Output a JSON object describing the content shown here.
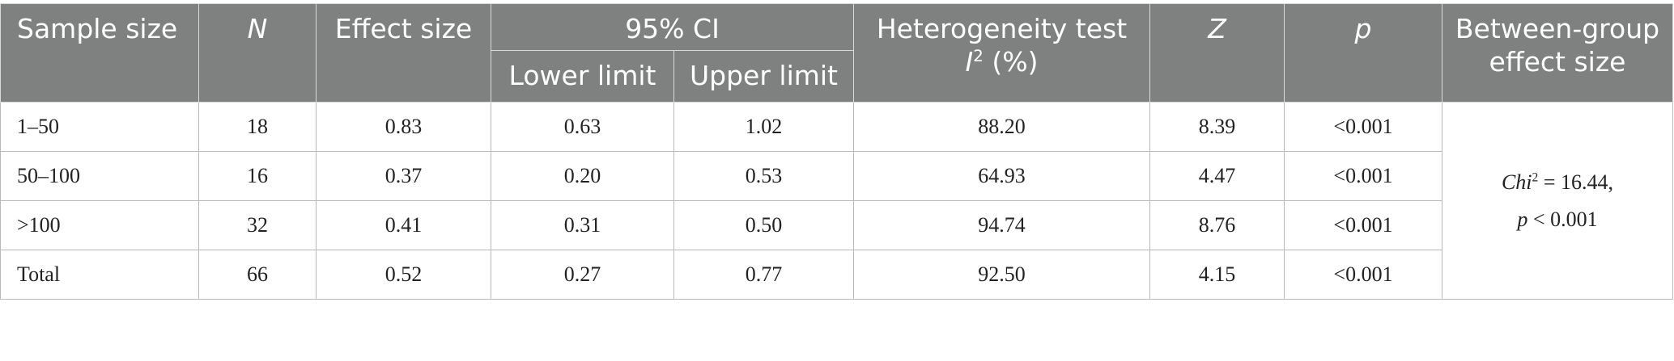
{
  "headers": {
    "sample_size": "Sample size",
    "n": "N",
    "effect_size": "Effect size",
    "ci": "95% CI",
    "lower_limit": "Lower limit",
    "upper_limit": "Upper limit",
    "heterogeneity_line1": "Heterogeneity test",
    "heterogeneity_i": "I",
    "heterogeneity_sup": "2",
    "heterogeneity_unit": " (%)",
    "z": "Z",
    "p": "p",
    "between_group": "Between-group effect size"
  },
  "rows": [
    {
      "sample": "1–50",
      "n": "18",
      "effect": "0.83",
      "lower": "0.63",
      "upper": "1.02",
      "i2": "88.20",
      "z": "8.39",
      "p": "<0.001"
    },
    {
      "sample": "50–100",
      "n": "16",
      "effect": "0.37",
      "lower": "0.20",
      "upper": "0.53",
      "i2": "64.93",
      "z": "4.47",
      "p": "<0.001"
    },
    {
      "sample": ">100",
      "n": "32",
      "effect": "0.41",
      "lower": "0.31",
      "upper": "0.50",
      "i2": "94.74",
      "z": "8.76",
      "p": "<0.001"
    },
    {
      "sample": "Total",
      "n": "66",
      "effect": "0.52",
      "lower": "0.27",
      "upper": "0.77",
      "i2": "92.50",
      "z": "4.15",
      "p": "<0.001"
    }
  ],
  "between_group": {
    "chi_label": "Chi",
    "chi_sup": "2",
    "chi_value": " = 16.44,",
    "p_label": "p",
    "p_value": " < 0.001"
  }
}
